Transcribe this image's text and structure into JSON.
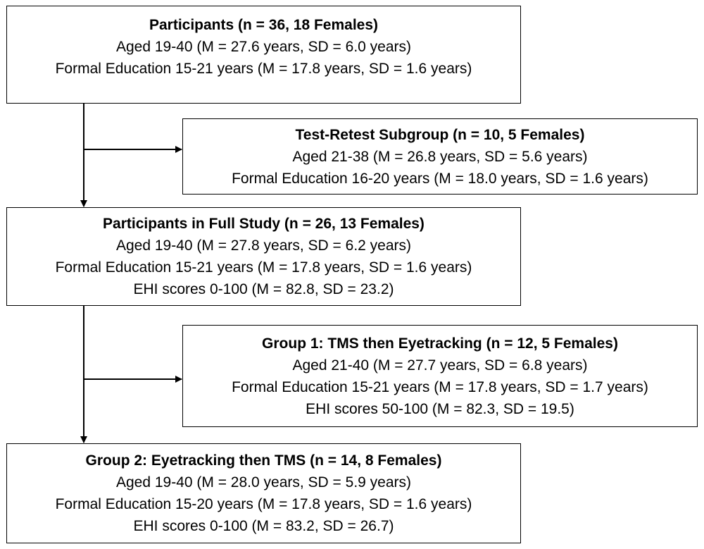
{
  "boxes": [
    {
      "title": "Participants (n = 36, 18 Females)",
      "lines": [
        "Aged 19-40 (M = 27.6 years, SD = 6.0 years)",
        "Formal Education 15-21 years (M = 17.8 years, SD = 1.6 years)"
      ]
    },
    {
      "title": "Test-Retest Subgroup (n = 10, 5 Females)",
      "lines": [
        "Aged 21-38 (M = 26.8 years, SD = 5.6 years)",
        "Formal Education 16-20 years (M = 18.0 years, SD = 1.6 years)"
      ]
    },
    {
      "title": "Participants in Full Study (n = 26, 13 Females)",
      "lines": [
        "Aged 19-40 (M = 27.8 years, SD = 6.2 years)",
        "Formal Education 15-21 years (M = 17.8 years, SD = 1.6 years)",
        "EHI scores 0-100 (M = 82.8, SD = 23.2)"
      ]
    },
    {
      "title": "Group 1: TMS then Eyetracking (n = 12, 5 Females)",
      "lines": [
        "Aged 21-40 (M = 27.7 years, SD = 6.8 years)",
        "Formal Education 15-21 years (M = 17.8 years, SD = 1.7 years)",
        "EHI scores 50-100 (M = 82.3, SD = 19.5)"
      ]
    },
    {
      "title": "Group 2: Eyetracking then TMS (n = 14, 8 Females)",
      "lines": [
        "Aged 19-40 (M = 28.0 years, SD = 5.9 years)",
        "Formal Education 15-20 years (M = 17.8 years, SD = 1.6 years)",
        "EHI scores 0-100 (M = 83.2, SD = 26.7)"
      ]
    }
  ]
}
